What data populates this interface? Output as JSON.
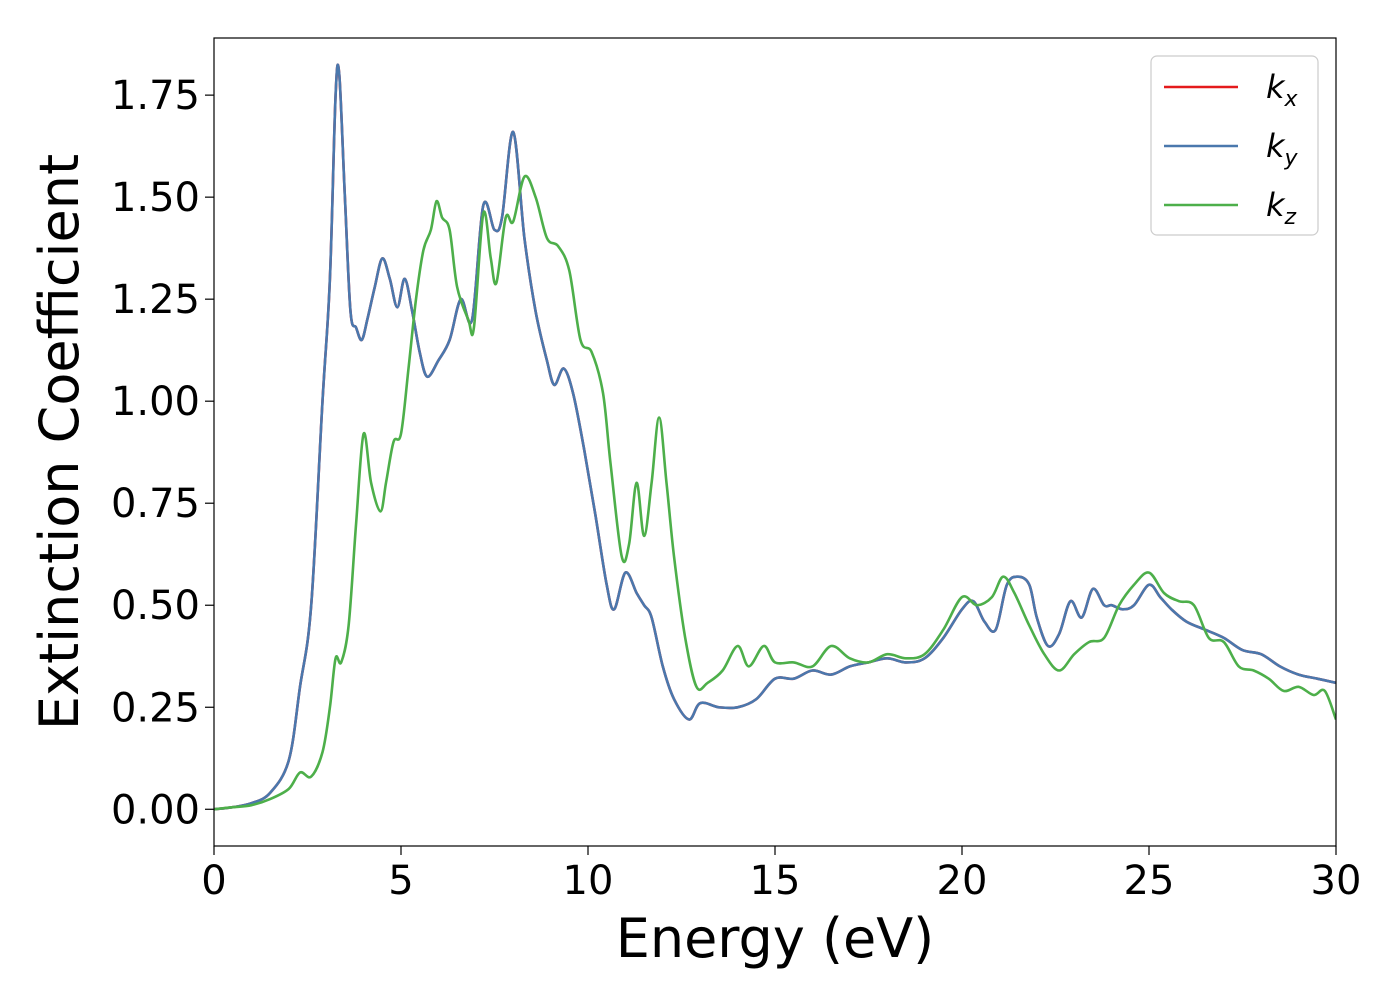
{
  "chart_data": {
    "type": "line",
    "xlabel": "Energy (eV)",
    "ylabel": "Extinction Coefficient",
    "xlim": [
      0,
      30
    ],
    "ylim": [
      -0.09,
      1.89
    ],
    "xticks": [
      0,
      5,
      10,
      15,
      20,
      25,
      30
    ],
    "xtick_labels": [
      "0",
      "5",
      "10",
      "15",
      "20",
      "25",
      "30"
    ],
    "yticks": [
      0,
      0.25,
      0.5,
      0.75,
      1.0,
      1.25,
      1.5,
      1.75
    ],
    "ytick_labels": [
      "0.00",
      "0.25",
      "0.50",
      "0.75",
      "1.00",
      "1.25",
      "1.50",
      "1.75"
    ],
    "grid": false,
    "legend_position": "top-right",
    "series": [
      {
        "name": "k",
        "subscript": "x",
        "color": "#e41a1c",
        "points": [
          [
            0,
            0
          ],
          [
            0.5,
            0.005
          ],
          [
            1,
            0.015
          ],
          [
            1.5,
            0.04
          ],
          [
            2,
            0.12
          ],
          [
            2.3,
            0.3
          ],
          [
            2.6,
            0.5
          ],
          [
            2.9,
            1.0
          ],
          [
            3.1,
            1.3
          ],
          [
            3.25,
            1.75
          ],
          [
            3.35,
            1.8
          ],
          [
            3.5,
            1.5
          ],
          [
            3.65,
            1.22
          ],
          [
            3.8,
            1.18
          ],
          [
            3.95,
            1.15
          ],
          [
            4.1,
            1.2
          ],
          [
            4.3,
            1.28
          ],
          [
            4.5,
            1.35
          ],
          [
            4.7,
            1.3
          ],
          [
            4.9,
            1.23
          ],
          [
            5.1,
            1.3
          ],
          [
            5.3,
            1.22
          ],
          [
            5.5,
            1.12
          ],
          [
            5.7,
            1.06
          ],
          [
            6.0,
            1.1
          ],
          [
            6.3,
            1.15
          ],
          [
            6.6,
            1.25
          ],
          [
            6.9,
            1.2
          ],
          [
            7.2,
            1.48
          ],
          [
            7.5,
            1.42
          ],
          [
            7.7,
            1.45
          ],
          [
            8.0,
            1.66
          ],
          [
            8.3,
            1.4
          ],
          [
            8.6,
            1.22
          ],
          [
            8.9,
            1.1
          ],
          [
            9.1,
            1.04
          ],
          [
            9.35,
            1.08
          ],
          [
            9.6,
            1.02
          ],
          [
            9.9,
            0.88
          ],
          [
            10.2,
            0.72
          ],
          [
            10.5,
            0.55
          ],
          [
            10.7,
            0.49
          ],
          [
            11.0,
            0.58
          ],
          [
            11.3,
            0.53
          ],
          [
            11.5,
            0.5
          ],
          [
            11.7,
            0.47
          ],
          [
            12.0,
            0.35
          ],
          [
            12.3,
            0.27
          ],
          [
            12.7,
            0.22
          ],
          [
            13.0,
            0.26
          ],
          [
            13.5,
            0.25
          ],
          [
            14.0,
            0.25
          ],
          [
            14.5,
            0.27
          ],
          [
            15.0,
            0.32
          ],
          [
            15.5,
            0.32
          ],
          [
            16.0,
            0.34
          ],
          [
            16.5,
            0.33
          ],
          [
            17.0,
            0.35
          ],
          [
            17.5,
            0.36
          ],
          [
            18.0,
            0.37
          ],
          [
            18.5,
            0.36
          ],
          [
            19.0,
            0.37
          ],
          [
            19.5,
            0.42
          ],
          [
            20.0,
            0.49
          ],
          [
            20.3,
            0.51
          ],
          [
            20.6,
            0.46
          ],
          [
            20.9,
            0.44
          ],
          [
            21.2,
            0.55
          ],
          [
            21.5,
            0.57
          ],
          [
            21.8,
            0.55
          ],
          [
            22.0,
            0.47
          ],
          [
            22.3,
            0.4
          ],
          [
            22.6,
            0.43
          ],
          [
            22.9,
            0.51
          ],
          [
            23.2,
            0.47
          ],
          [
            23.5,
            0.54
          ],
          [
            23.8,
            0.5
          ],
          [
            24.0,
            0.5
          ],
          [
            24.3,
            0.49
          ],
          [
            24.6,
            0.5
          ],
          [
            25.0,
            0.55
          ],
          [
            25.3,
            0.52
          ],
          [
            25.6,
            0.49
          ],
          [
            26.0,
            0.46
          ],
          [
            26.5,
            0.44
          ],
          [
            27.0,
            0.42
          ],
          [
            27.5,
            0.39
          ],
          [
            28.0,
            0.38
          ],
          [
            28.5,
            0.35
          ],
          [
            29.0,
            0.33
          ],
          [
            29.5,
            0.32
          ],
          [
            30.0,
            0.31
          ]
        ]
      },
      {
        "name": "k",
        "subscript": "y",
        "color": "#4a78ad",
        "points": [
          [
            0,
            0
          ],
          [
            0.5,
            0.005
          ],
          [
            1,
            0.015
          ],
          [
            1.5,
            0.04
          ],
          [
            2,
            0.12
          ],
          [
            2.3,
            0.3
          ],
          [
            2.6,
            0.5
          ],
          [
            2.9,
            1.0
          ],
          [
            3.1,
            1.3
          ],
          [
            3.25,
            1.75
          ],
          [
            3.35,
            1.8
          ],
          [
            3.5,
            1.5
          ],
          [
            3.65,
            1.22
          ],
          [
            3.8,
            1.18
          ],
          [
            3.95,
            1.15
          ],
          [
            4.1,
            1.2
          ],
          [
            4.3,
            1.28
          ],
          [
            4.5,
            1.35
          ],
          [
            4.7,
            1.3
          ],
          [
            4.9,
            1.23
          ],
          [
            5.1,
            1.3
          ],
          [
            5.3,
            1.22
          ],
          [
            5.5,
            1.12
          ],
          [
            5.7,
            1.06
          ],
          [
            6.0,
            1.1
          ],
          [
            6.3,
            1.15
          ],
          [
            6.6,
            1.25
          ],
          [
            6.9,
            1.2
          ],
          [
            7.2,
            1.48
          ],
          [
            7.5,
            1.42
          ],
          [
            7.7,
            1.45
          ],
          [
            8.0,
            1.66
          ],
          [
            8.3,
            1.4
          ],
          [
            8.6,
            1.22
          ],
          [
            8.9,
            1.1
          ],
          [
            9.1,
            1.04
          ],
          [
            9.35,
            1.08
          ],
          [
            9.6,
            1.02
          ],
          [
            9.9,
            0.88
          ],
          [
            10.2,
            0.72
          ],
          [
            10.5,
            0.55
          ],
          [
            10.7,
            0.49
          ],
          [
            11.0,
            0.58
          ],
          [
            11.3,
            0.53
          ],
          [
            11.5,
            0.5
          ],
          [
            11.7,
            0.47
          ],
          [
            12.0,
            0.35
          ],
          [
            12.3,
            0.27
          ],
          [
            12.7,
            0.22
          ],
          [
            13.0,
            0.26
          ],
          [
            13.5,
            0.25
          ],
          [
            14.0,
            0.25
          ],
          [
            14.5,
            0.27
          ],
          [
            15.0,
            0.32
          ],
          [
            15.5,
            0.32
          ],
          [
            16.0,
            0.34
          ],
          [
            16.5,
            0.33
          ],
          [
            17.0,
            0.35
          ],
          [
            17.5,
            0.36
          ],
          [
            18.0,
            0.37
          ],
          [
            18.5,
            0.36
          ],
          [
            19.0,
            0.37
          ],
          [
            19.5,
            0.42
          ],
          [
            20.0,
            0.49
          ],
          [
            20.3,
            0.51
          ],
          [
            20.6,
            0.46
          ],
          [
            20.9,
            0.44
          ],
          [
            21.2,
            0.55
          ],
          [
            21.5,
            0.57
          ],
          [
            21.8,
            0.55
          ],
          [
            22.0,
            0.47
          ],
          [
            22.3,
            0.4
          ],
          [
            22.6,
            0.43
          ],
          [
            22.9,
            0.51
          ],
          [
            23.2,
            0.47
          ],
          [
            23.5,
            0.54
          ],
          [
            23.8,
            0.5
          ],
          [
            24.0,
            0.5
          ],
          [
            24.3,
            0.49
          ],
          [
            24.6,
            0.5
          ],
          [
            25.0,
            0.55
          ],
          [
            25.3,
            0.52
          ],
          [
            25.6,
            0.49
          ],
          [
            26.0,
            0.46
          ],
          [
            26.5,
            0.44
          ],
          [
            27.0,
            0.42
          ],
          [
            27.5,
            0.39
          ],
          [
            28.0,
            0.38
          ],
          [
            28.5,
            0.35
          ],
          [
            29.0,
            0.33
          ],
          [
            29.5,
            0.32
          ],
          [
            30.0,
            0.31
          ]
        ]
      },
      {
        "name": "k",
        "subscript": "z",
        "color": "#4daf4a",
        "points": [
          [
            0,
            0
          ],
          [
            0.5,
            0.005
          ],
          [
            1,
            0.01
          ],
          [
            1.5,
            0.025
          ],
          [
            2,
            0.05
          ],
          [
            2.3,
            0.09
          ],
          [
            2.6,
            0.08
          ],
          [
            2.9,
            0.14
          ],
          [
            3.1,
            0.25
          ],
          [
            3.25,
            0.37
          ],
          [
            3.4,
            0.36
          ],
          [
            3.6,
            0.45
          ],
          [
            3.8,
            0.7
          ],
          [
            4.0,
            0.92
          ],
          [
            4.2,
            0.8
          ],
          [
            4.45,
            0.73
          ],
          [
            4.6,
            0.8
          ],
          [
            4.8,
            0.9
          ],
          [
            5.0,
            0.92
          ],
          [
            5.2,
            1.08
          ],
          [
            5.4,
            1.25
          ],
          [
            5.6,
            1.37
          ],
          [
            5.8,
            1.42
          ],
          [
            5.95,
            1.49
          ],
          [
            6.1,
            1.45
          ],
          [
            6.3,
            1.42
          ],
          [
            6.5,
            1.28
          ],
          [
            6.8,
            1.2
          ],
          [
            6.95,
            1.18
          ],
          [
            7.2,
            1.46
          ],
          [
            7.4,
            1.35
          ],
          [
            7.55,
            1.29
          ],
          [
            7.8,
            1.45
          ],
          [
            8.0,
            1.44
          ],
          [
            8.3,
            1.55
          ],
          [
            8.6,
            1.5
          ],
          [
            8.9,
            1.4
          ],
          [
            9.2,
            1.38
          ],
          [
            9.5,
            1.32
          ],
          [
            9.8,
            1.15
          ],
          [
            10.1,
            1.12
          ],
          [
            10.4,
            1.02
          ],
          [
            10.6,
            0.85
          ],
          [
            10.9,
            0.62
          ],
          [
            11.1,
            0.65
          ],
          [
            11.3,
            0.8
          ],
          [
            11.5,
            0.67
          ],
          [
            11.7,
            0.8
          ],
          [
            11.9,
            0.96
          ],
          [
            12.1,
            0.8
          ],
          [
            12.3,
            0.62
          ],
          [
            12.6,
            0.42
          ],
          [
            12.9,
            0.3
          ],
          [
            13.2,
            0.31
          ],
          [
            13.6,
            0.34
          ],
          [
            14.0,
            0.4
          ],
          [
            14.3,
            0.35
          ],
          [
            14.7,
            0.4
          ],
          [
            15.0,
            0.36
          ],
          [
            15.5,
            0.36
          ],
          [
            16.0,
            0.35
          ],
          [
            16.5,
            0.4
          ],
          [
            17.0,
            0.37
          ],
          [
            17.5,
            0.36
          ],
          [
            18.0,
            0.38
          ],
          [
            18.5,
            0.37
          ],
          [
            19.0,
            0.38
          ],
          [
            19.5,
            0.44
          ],
          [
            20.0,
            0.52
          ],
          [
            20.4,
            0.5
          ],
          [
            20.8,
            0.52
          ],
          [
            21.1,
            0.57
          ],
          [
            21.4,
            0.53
          ],
          [
            21.8,
            0.45
          ],
          [
            22.2,
            0.38
          ],
          [
            22.6,
            0.34
          ],
          [
            23.0,
            0.38
          ],
          [
            23.4,
            0.41
          ],
          [
            23.8,
            0.42
          ],
          [
            24.2,
            0.5
          ],
          [
            24.6,
            0.55
          ],
          [
            25.0,
            0.58
          ],
          [
            25.4,
            0.53
          ],
          [
            25.8,
            0.51
          ],
          [
            26.2,
            0.5
          ],
          [
            26.6,
            0.42
          ],
          [
            27.0,
            0.41
          ],
          [
            27.4,
            0.35
          ],
          [
            27.8,
            0.34
          ],
          [
            28.2,
            0.32
          ],
          [
            28.6,
            0.29
          ],
          [
            29.0,
            0.3
          ],
          [
            29.4,
            0.28
          ],
          [
            29.7,
            0.29
          ],
          [
            30.0,
            0.22
          ]
        ]
      }
    ]
  }
}
